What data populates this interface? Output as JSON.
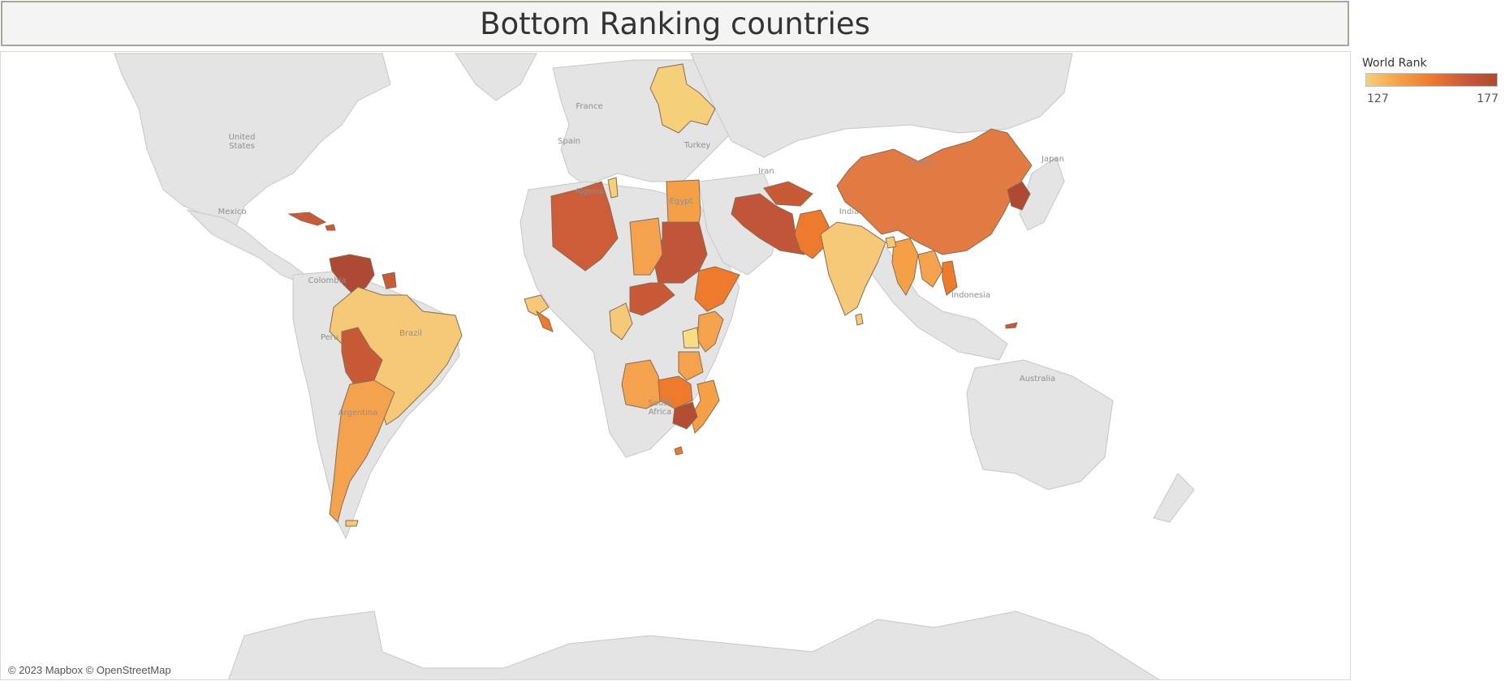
{
  "title": "Bottom Ranking countries",
  "attribution": "© 2023 Mapbox © OpenStreetMap",
  "legend": {
    "title": "World Rank",
    "min": "127",
    "max": "177",
    "colors": [
      "#f6cf7a",
      "#f5a047",
      "#ee7a2e",
      "#c95a38",
      "#ae4a33"
    ]
  },
  "map_labels": {
    "united_states": "United States",
    "mexico": "Mexico",
    "colombia": "Colombia",
    "peru": "Peru",
    "brazil": "Brazil",
    "argentina": "Argentina",
    "france": "France",
    "spain": "Spain",
    "turkey": "Turkey",
    "algeria": "Algeria",
    "egypt": "Egypt",
    "iran": "Iran",
    "india": "India",
    "china": "China",
    "japan": "Japan",
    "indonesia": "Indonesia",
    "australia": "Australia",
    "south_africa": "South Africa"
  },
  "highlighted_countries": [
    {
      "name": "Ukraine",
      "rank_level": 0.1
    },
    {
      "name": "Cuba",
      "rank_level": 0.8
    },
    {
      "name": "Venezuela",
      "rank_level": 0.95
    },
    {
      "name": "Guyana",
      "rank_level": 0.7
    },
    {
      "name": "Brazil",
      "rank_level": 0.1
    },
    {
      "name": "Bolivia",
      "rank_level": 0.85
    },
    {
      "name": "Argentina",
      "rank_level": 0.35
    },
    {
      "name": "Algeria",
      "rank_level": 0.8
    },
    {
      "name": "Tunisia",
      "rank_level": 0.1
    },
    {
      "name": "Egypt",
      "rank_level": 0.45
    },
    {
      "name": "Sudan",
      "rank_level": 0.9
    },
    {
      "name": "Chad",
      "rank_level": 0.35
    },
    {
      "name": "Ethiopia",
      "rank_level": 0.55
    },
    {
      "name": "Kenya",
      "rank_level": 0.3
    },
    {
      "name": "Uganda",
      "rank_level": 0.1
    },
    {
      "name": "Angola",
      "rank_level": 0.3
    },
    {
      "name": "Zambia",
      "rank_level": 0.6
    },
    {
      "name": "Zimbabwe",
      "rank_level": 0.95
    },
    {
      "name": "Mozambique",
      "rank_level": 0.5
    },
    {
      "name": "Iran",
      "rank_level": 0.9
    },
    {
      "name": "Afghanistan",
      "rank_level": 0.85
    },
    {
      "name": "Pakistan",
      "rank_level": 0.55
    },
    {
      "name": "India",
      "rank_level": 0.1
    },
    {
      "name": "China",
      "rank_level": 0.6
    },
    {
      "name": "North Korea",
      "rank_level": 1.0
    },
    {
      "name": "Myanmar",
      "rank_level": 0.5
    },
    {
      "name": "Vietnam",
      "rank_level": 0.55
    }
  ]
}
